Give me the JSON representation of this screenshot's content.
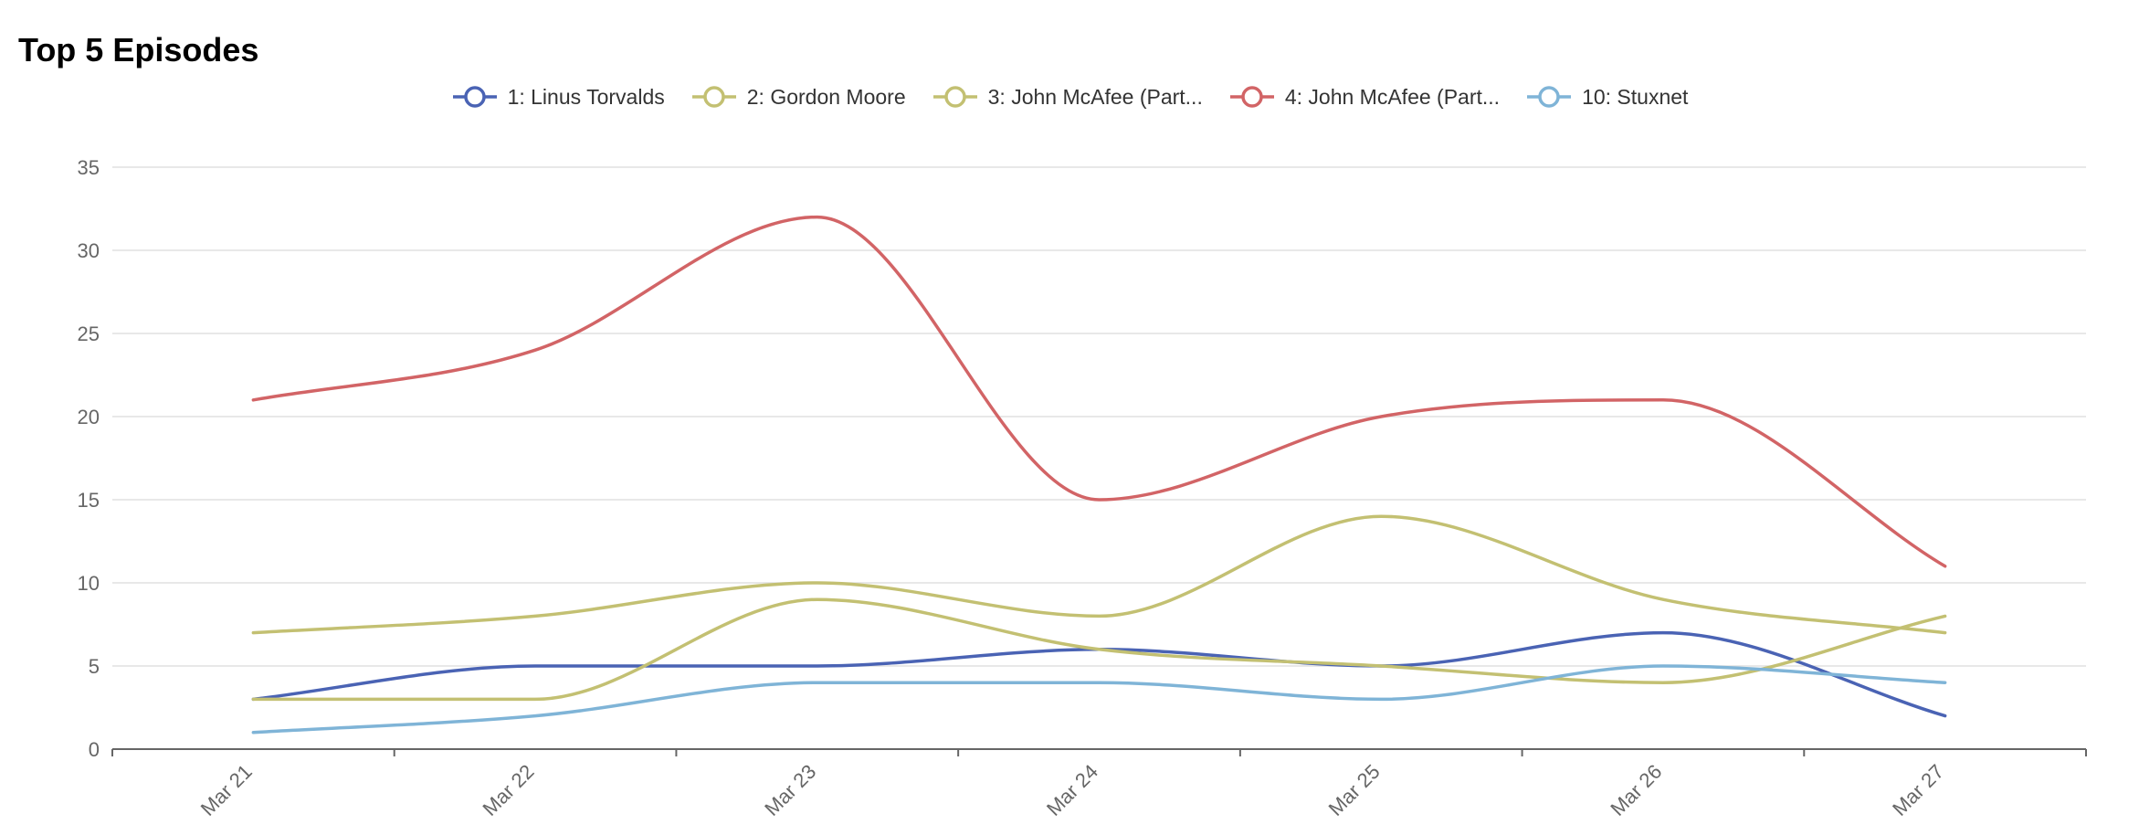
{
  "title": "Top 5 Episodes",
  "chart_data": {
    "type": "line",
    "title": "Top 5 Episodes",
    "xlabel": "",
    "ylabel": "",
    "categories": [
      "Mar 21",
      "Mar 22",
      "Mar 23",
      "Mar 24",
      "Mar 25",
      "Mar 26",
      "Mar 27"
    ],
    "ylim": [
      0,
      35
    ],
    "yticks": [
      0,
      5,
      10,
      15,
      20,
      25,
      30,
      35
    ],
    "grid": true,
    "legend_position": "top-center",
    "smooth": true,
    "series": [
      {
        "name": "1: Linus Torvalds",
        "color": "#4a63b4",
        "values": [
          3,
          5,
          5,
          6,
          5,
          7,
          2
        ]
      },
      {
        "name": "2: Gordon Moore",
        "color": "#c3c072",
        "values": [
          7,
          8,
          10,
          8,
          14,
          9,
          7
        ]
      },
      {
        "name": "3: John McAfee (Part...",
        "color": "#c3c072",
        "values": [
          3,
          3,
          9,
          6,
          5,
          4,
          8
        ]
      },
      {
        "name": "4: John McAfee (Part...",
        "color": "#d26466",
        "values": [
          21,
          24,
          32,
          15,
          20,
          21,
          11
        ]
      },
      {
        "name": "10: Stuxnet",
        "color": "#7fb4d7",
        "values": [
          1,
          2,
          4,
          4,
          3,
          5,
          4
        ]
      }
    ]
  }
}
